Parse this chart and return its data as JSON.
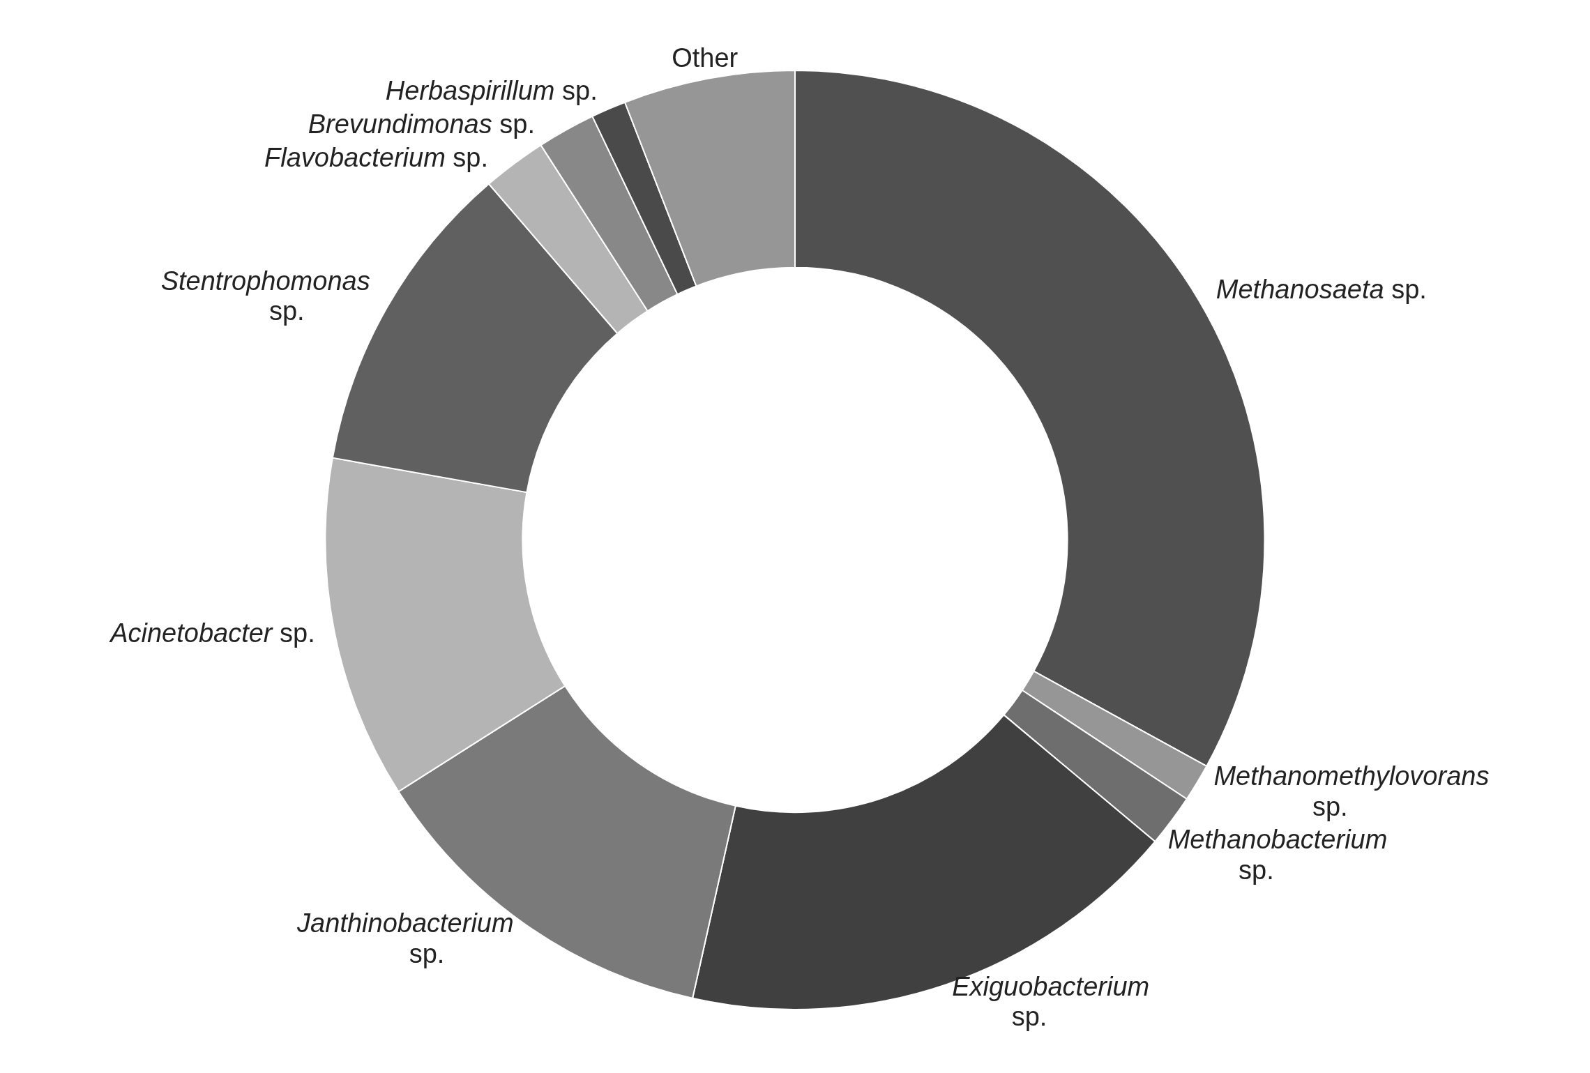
{
  "chart_data": {
    "type": "donut",
    "categories": [
      "Methanosaeta sp.",
      "Methanomethylovorans sp.",
      "Methanobacterium sp.",
      "Exiguobacterium sp.",
      "Janthinobacterium sp.",
      "Acinetobacter sp.",
      "Stentrophomonas sp.",
      "Flavobacterium sp.",
      "Brevundimonas sp.",
      "Herbaspirillum sp.",
      "Other"
    ],
    "values": [
      33.0,
      1.3,
      1.8,
      17.4,
      12.5,
      11.8,
      10.9,
      2.2,
      2.0,
      1.2,
      5.9
    ],
    "colors": [
      "#505050",
      "#969696",
      "#6e6e6e",
      "#404040",
      "#7a7a7a",
      "#b4b4b4",
      "#606060",
      "#b4b4b4",
      "#888888",
      "#4a4a4a",
      "#969696"
    ]
  }
}
